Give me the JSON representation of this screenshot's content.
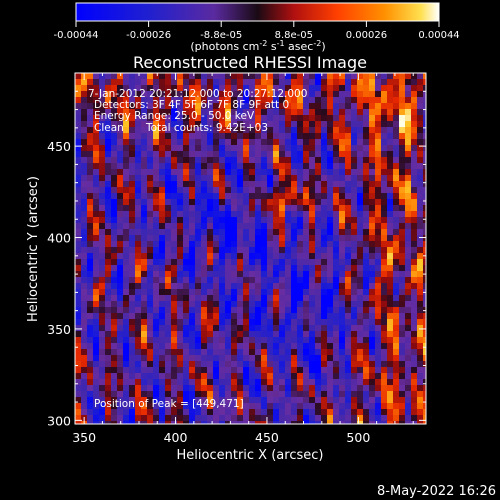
{
  "chart_data": {
    "type": "heatmap",
    "title": "Reconstructed RHESSI Image",
    "xlabel": "Heliocentric X (arcsec)",
    "ylabel": "Heliocentric Y (arcsec)",
    "xlim": [
      345,
      537
    ],
    "ylim": [
      298,
      490
    ],
    "x_ticks": [
      350,
      400,
      450,
      500
    ],
    "y_ticks": [
      300,
      350,
      400,
      450
    ],
    "colorbar": {
      "ticks": [
        "-0.00044",
        "-0.00026",
        "-8.8e-05",
        "8.8e-05",
        "0.00026",
        "0.00044"
      ],
      "range": [
        -0.00044,
        0.00044
      ],
      "units_text": "(photons cm",
      "units_exp1": "-2",
      "units_mid": " s",
      "units_exp2": "-1",
      "units_end": " asec",
      "units_exp3": "-2",
      "units_close": ")"
    },
    "info": {
      "time_range": "7-Jan-2012 20:21:12.000 to 20:27:12.000",
      "detectors": "Detectors: 3F 4F 5F 6F 7F 8F 9F att 0",
      "energy_range": "Energy Range: 25.0 - 50.0 keV",
      "method": "Clean",
      "total_counts": "Total counts: 9.42E+03"
    },
    "peak_label": "Position of Peak = [449,471]",
    "peak": [
      449,
      471
    ]
  },
  "footer": {
    "timestamp": "8-May-2022 16:26"
  },
  "colors": {
    "background": "#000000",
    "axes": "#ffffff"
  }
}
